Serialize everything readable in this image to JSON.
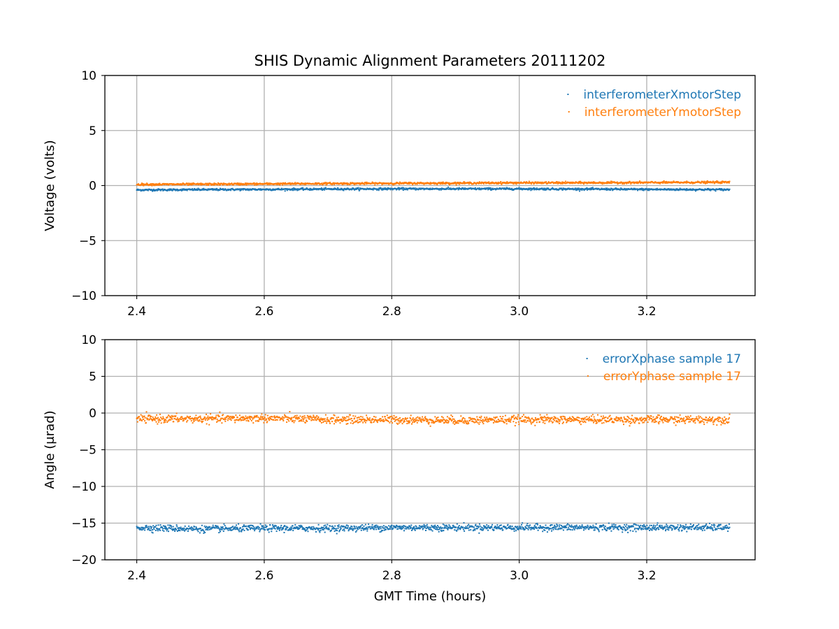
{
  "figure": {
    "title": "SHIS Dynamic Alignment Parameters 20111202"
  },
  "chart_data": [
    {
      "type": "scatter",
      "title": "SHIS Dynamic Alignment Parameters 20111202",
      "xlabel": "",
      "ylabel": "Voltage (volts)",
      "xlim": [
        2.35,
        3.37
      ],
      "ylim": [
        -10,
        10
      ],
      "xticks": [
        2.4,
        2.6,
        2.8,
        3.0,
        3.2
      ],
      "xtick_labels": [
        "2.4",
        "2.6",
        "2.8",
        "3.0",
        "3.2"
      ],
      "yticks": [
        10,
        5,
        0,
        -5,
        -10
      ],
      "ytick_labels": [
        "10",
        "5",
        "0",
        "−5",
        "−10"
      ],
      "grid": true,
      "legend_position": "top-right",
      "series": [
        {
          "name": "interferometerXmotorStep",
          "color": "#1f77b4",
          "x": [
            2.4,
            2.5,
            2.6,
            2.7,
            2.8,
            2.9,
            3.0,
            3.1,
            3.2,
            3.33
          ],
          "y": [
            -0.4,
            -0.37,
            -0.35,
            -0.32,
            -0.3,
            -0.3,
            -0.3,
            -0.32,
            -0.35,
            -0.37
          ],
          "spread": 0.1
        },
        {
          "name": "interferometerYmotorStep",
          "color": "#ff7f0e",
          "x": [
            2.4,
            2.5,
            2.6,
            2.7,
            2.8,
            2.9,
            3.0,
            3.1,
            3.2,
            3.33
          ],
          "y": [
            0.1,
            0.12,
            0.15,
            0.18,
            0.2,
            0.22,
            0.25,
            0.25,
            0.27,
            0.3
          ],
          "spread": 0.1
        }
      ]
    },
    {
      "type": "scatter",
      "title": "",
      "xlabel": "GMT Time (hours)",
      "ylabel": "Angle (μrad)",
      "xlim": [
        2.35,
        3.37
      ],
      "ylim": [
        -20,
        10
      ],
      "xticks": [
        2.4,
        2.6,
        2.8,
        3.0,
        3.2
      ],
      "xtick_labels": [
        "2.4",
        "2.6",
        "2.8",
        "3.0",
        "3.2"
      ],
      "yticks": [
        10,
        5,
        0,
        -5,
        -10,
        -15,
        -20
      ],
      "ytick_labels": [
        "10",
        "5",
        "0",
        "−5",
        "−10",
        "−15",
        "−20"
      ],
      "grid": true,
      "legend_position": "top-right",
      "series": [
        {
          "name": "errorXphase sample 17",
          "color": "#1f77b4",
          "x": [
            2.4,
            2.5,
            2.6,
            2.7,
            2.8,
            2.9,
            3.0,
            3.1,
            3.2,
            3.33
          ],
          "y": [
            -15.6,
            -15.8,
            -15.7,
            -15.7,
            -15.6,
            -15.6,
            -15.6,
            -15.6,
            -15.6,
            -15.6
          ],
          "spread": 0.5
        },
        {
          "name": "errorYphase sample 17",
          "color": "#ff7f0e",
          "x": [
            2.4,
            2.5,
            2.6,
            2.7,
            2.8,
            2.9,
            3.0,
            3.1,
            3.2,
            3.33
          ],
          "y": [
            -0.8,
            -0.8,
            -0.7,
            -0.9,
            -0.9,
            -1.0,
            -0.9,
            -0.9,
            -0.9,
            -0.9
          ],
          "spread": 0.6
        }
      ]
    }
  ]
}
